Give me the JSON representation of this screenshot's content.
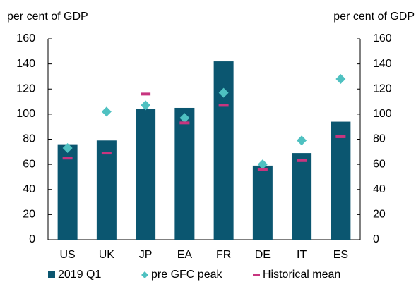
{
  "chart_data": {
    "type": "bar",
    "y_label": "per cent of GDP",
    "y2_label": "per cent of GDP",
    "categories": [
      "US",
      "UK",
      "JP",
      "EA",
      "FR",
      "DE",
      "IT",
      "ES"
    ],
    "series": [
      {
        "name": "2019 Q1",
        "color": "#0b5670",
        "marker": "bar",
        "values": [
          76,
          79,
          104,
          105,
          142,
          59,
          69,
          94
        ]
      },
      {
        "name": "pre GFC peak",
        "color": "#4fc1c1",
        "marker": "diamond",
        "values": [
          73,
          102,
          107,
          97,
          117,
          60,
          79,
          128
        ]
      },
      {
        "name": "Historical mean",
        "color": "#c7357f",
        "marker": "dash",
        "values": [
          65,
          69,
          116,
          93,
          107,
          56,
          63,
          82
        ]
      }
    ],
    "ylim": [
      0,
      160
    ],
    "yticks": [
      0,
      20,
      40,
      60,
      80,
      100,
      120,
      140,
      160
    ],
    "y2lim": [
      0,
      160
    ],
    "y2ticks": [
      0,
      20,
      40,
      60,
      80,
      100,
      120,
      140,
      160
    ],
    "legend": "bottom"
  }
}
